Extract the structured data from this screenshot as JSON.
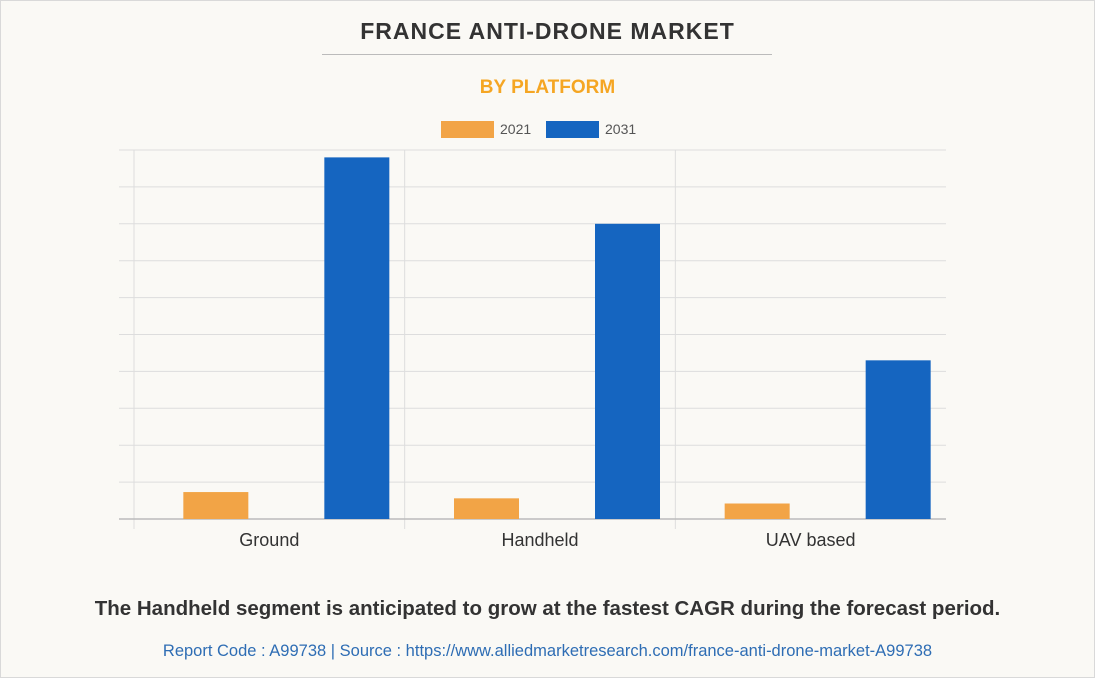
{
  "header": {
    "title": "FRANCE ANTI-DRONE MARKET",
    "subtitle": "BY PLATFORM"
  },
  "chart_data": {
    "type": "bar",
    "categories": [
      "Ground",
      "Handheld",
      "UAV based"
    ],
    "series": [
      {
        "name": "2021",
        "color": "#f2a446",
        "values": [
          0.73,
          0.56,
          0.42
        ]
      },
      {
        "name": "2031",
        "color": "#1565c0",
        "values": [
          9.8,
          8.0,
          4.3
        ]
      }
    ],
    "ylim": [
      0,
      10
    ],
    "grid": true,
    "legend": "top-center",
    "xlabel": "",
    "ylabel": ""
  },
  "footer": {
    "note": "The Handheld segment is anticipated to grow at the fastest CAGR during the forecast period.",
    "source": "Report Code : A99738  |  Source : https://www.alliedmarketresearch.com/france-anti-drone-market-A99738"
  }
}
